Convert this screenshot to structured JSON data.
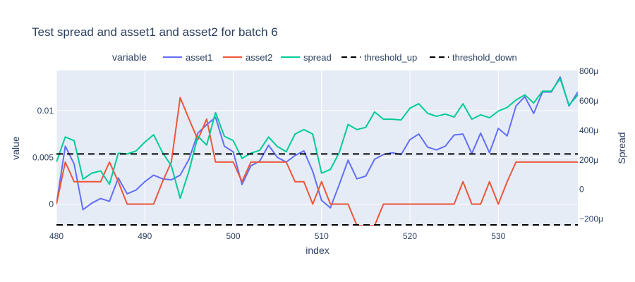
{
  "chart_data": {
    "type": "line",
    "title": "Test spread and asset1 and asset2 for batch 6",
    "xlabel": "index",
    "ylabel": "value",
    "y2label": "Spread",
    "legend_title": "variable",
    "legend_placement": "top",
    "grid": true,
    "xlim": [
      480,
      539
    ],
    "ylim": [
      -0.0023,
      0.0143
    ],
    "y2lim": [
      -0.000245,
      0.000805
    ],
    "x_ticks": [
      480,
      490,
      500,
      510,
      520,
      530
    ],
    "y_ticks": [
      {
        "value": 0,
        "label": "0"
      },
      {
        "value": 0.005,
        "label": "0.005"
      },
      {
        "value": 0.01,
        "label": "0.01"
      }
    ],
    "y2_ticks": [
      {
        "value": -0.0002,
        "label": "−200μ"
      },
      {
        "value": 0,
        "label": "0"
      },
      {
        "value": 0.0002,
        "label": "200μ"
      },
      {
        "value": 0.0004,
        "label": "400μ"
      },
      {
        "value": 0.0006,
        "label": "600μ"
      },
      {
        "value": 0.0008,
        "label": "800μ"
      }
    ],
    "series": [
      {
        "name": "asset1",
        "color": "#636efa",
        "axis": "y",
        "x": [
          480,
          481,
          482,
          483,
          484,
          485,
          486,
          487,
          488,
          489,
          490,
          491,
          492,
          493,
          494,
          495,
          496,
          497,
          498,
          499,
          500,
          501,
          502,
          503,
          504,
          505,
          506,
          507,
          508,
          509,
          510,
          511,
          512,
          513,
          514,
          515,
          516,
          517,
          518,
          519,
          520,
          521,
          522,
          523,
          524,
          525,
          526,
          527,
          528,
          529,
          530,
          531,
          532,
          533,
          534,
          535,
          536,
          537,
          538,
          539
        ],
        "values": [
          0.0,
          0.0062,
          0.0043,
          -0.0006,
          0.0001,
          0.0006,
          0.0003,
          0.0028,
          0.0011,
          0.0015,
          0.0024,
          0.0031,
          0.0027,
          0.0026,
          0.0031,
          0.0048,
          0.0076,
          0.0085,
          0.0093,
          0.0062,
          0.0056,
          0.0021,
          0.0041,
          0.0046,
          0.0063,
          0.005,
          0.0045,
          0.0052,
          0.0057,
          0.0035,
          0.0004,
          -0.0004,
          0.0021,
          0.0047,
          0.0027,
          0.003,
          0.0048,
          0.0053,
          0.0055,
          0.0053,
          0.0069,
          0.0075,
          0.0061,
          0.0058,
          0.0062,
          0.0074,
          0.0075,
          0.0054,
          0.0076,
          0.0055,
          0.0081,
          0.0073,
          0.0105,
          0.0115,
          0.0097,
          0.012,
          0.012,
          0.0136,
          0.0105,
          0.012
        ]
      },
      {
        "name": "asset2",
        "color": "#ef553b",
        "axis": "y",
        "x": [
          480,
          481,
          482,
          483,
          484,
          485,
          486,
          487,
          488,
          489,
          490,
          491,
          492,
          493,
          494,
          495,
          496,
          497,
          498,
          499,
          500,
          501,
          502,
          503,
          504,
          505,
          506,
          507,
          508,
          509,
          510,
          511,
          512,
          513,
          514,
          515,
          516,
          517,
          518,
          519,
          520,
          521,
          522,
          523,
          524,
          525,
          526,
          527,
          528,
          529,
          530,
          531,
          532,
          533,
          534,
          535,
          536,
          537,
          538,
          539
        ],
        "values": [
          0.0,
          0.0045,
          0.0024,
          0.0024,
          0.0024,
          0.0024,
          0.0045,
          0.0024,
          0.0,
          0.0,
          0.0,
          0.0,
          0.0024,
          0.0045,
          0.0114,
          0.0091,
          0.0069,
          0.0091,
          0.0045,
          0.0045,
          0.0045,
          0.0024,
          0.0045,
          0.0045,
          0.0045,
          0.0045,
          0.0045,
          0.0024,
          0.0024,
          0.0,
          0.0024,
          0.0,
          0.0,
          0.0,
          -0.0023,
          -0.0023,
          -0.0023,
          0.0,
          0.0,
          0.0,
          0.0,
          0.0,
          0.0,
          0.0,
          0.0,
          0.0,
          0.0024,
          0.0,
          0.0,
          0.0024,
          0.0,
          0.0024,
          0.0045,
          0.0045,
          0.0045,
          0.0045,
          0.0045,
          0.0045,
          0.0045,
          0.0045
        ]
      },
      {
        "name": "spread",
        "color": "#00cc96",
        "axis": "y2",
        "x": [
          480,
          481,
          482,
          483,
          484,
          485,
          486,
          487,
          488,
          489,
          490,
          491,
          492,
          493,
          494,
          495,
          496,
          497,
          498,
          499,
          500,
          501,
          502,
          503,
          504,
          505,
          506,
          507,
          508,
          509,
          510,
          511,
          512,
          513,
          514,
          515,
          516,
          517,
          518,
          519,
          520,
          521,
          522,
          523,
          524,
          525,
          526,
          527,
          528,
          529,
          530,
          531,
          532,
          533,
          534,
          535,
          536,
          537,
          538,
          539
        ],
        "values": [
          0.000185,
          0.000355,
          0.00033,
          7e-05,
          0.00011,
          0.000125,
          3.5e-05,
          0.000245,
          0.00024,
          0.00026,
          0.00032,
          0.00037,
          0.00025,
          0.00016,
          -6e-05,
          0.000125,
          0.00036,
          0.0003,
          0.00052,
          0.00036,
          0.00033,
          0.00021,
          0.000245,
          0.000265,
          0.000355,
          0.00029,
          0.000255,
          0.000375,
          0.000405,
          0.000375,
          0.00011,
          0.000135,
          0.00025,
          0.00044,
          0.000405,
          0.00042,
          0.000525,
          0.000475,
          0.000475,
          0.00047,
          0.00055,
          0.00058,
          0.000515,
          0.000495,
          0.00051,
          0.00049,
          0.00058,
          0.000475,
          0.000505,
          0.000485,
          0.00053,
          0.000555,
          0.000605,
          0.00064,
          0.000585,
          0.000665,
          0.000665,
          0.00075,
          0.00057,
          0.00064
        ]
      },
      {
        "name": "threshold_up",
        "color": "#000000",
        "axis": "y2",
        "dash": true,
        "x": [
          480,
          539
        ],
        "values": [
          0.00024,
          0.00024
        ]
      },
      {
        "name": "threshold_down",
        "color": "#000000",
        "axis": "y2",
        "dash": true,
        "x": [
          480,
          539
        ],
        "values": [
          -0.00024,
          -0.00024
        ]
      }
    ]
  }
}
